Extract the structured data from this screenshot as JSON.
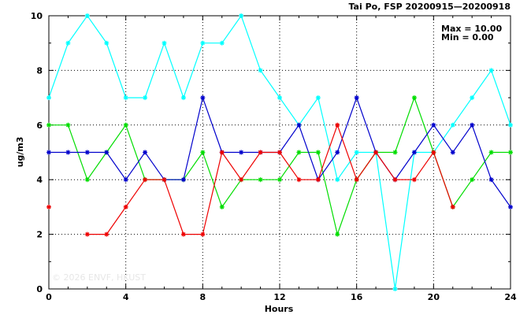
{
  "chart_data": {
    "type": "line",
    "title": "Tai Po, FSP 20200915—20200918",
    "xlabel": "Hours",
    "ylabel": "ug/m3",
    "xlim": [
      0,
      24
    ],
    "ylim": [
      0,
      10
    ],
    "xticks": [
      0,
      4,
      8,
      12,
      16,
      20,
      24
    ],
    "yticks": [
      0,
      2,
      4,
      6,
      8,
      10
    ],
    "grid": true,
    "stats": {
      "max_text": "Max = 10.00",
      "min_text": "Min =  0.00"
    },
    "watermark": "© 2026  ENVF, HKUST",
    "x": [
      0,
      1,
      2,
      3,
      4,
      5,
      6,
      7,
      8,
      9,
      10,
      11,
      12,
      13,
      14,
      15,
      16,
      17,
      18,
      19,
      20,
      21,
      22,
      23,
      24
    ],
    "series": [
      {
        "color": "#00ffff",
        "values": [
          7,
          9,
          10,
          9,
          7,
          7,
          9,
          7,
          9,
          9,
          10,
          8,
          7,
          6,
          7,
          4,
          5,
          5,
          0,
          5,
          5,
          6,
          7,
          8,
          6
        ]
      },
      {
        "color": "#00dd00",
        "values": [
          6,
          6,
          4,
          5,
          6,
          4,
          4,
          4,
          5,
          3,
          4,
          4,
          4,
          5,
          5,
          2,
          4,
          5,
          5,
          7,
          5,
          3,
          4,
          5,
          5
        ]
      },
      {
        "color": "#0000cc",
        "values": [
          5,
          5,
          5,
          5,
          4,
          5,
          4,
          4,
          7,
          5,
          5,
          5,
          5,
          6,
          4,
          5,
          7,
          5,
          4,
          5,
          6,
          5,
          6,
          4,
          3
        ]
      },
      {
        "color": "#ee0000",
        "values": [
          3,
          null,
          2,
          2,
          3,
          4,
          4,
          2,
          2,
          5,
          4,
          5,
          5,
          4,
          4,
          6,
          4,
          5,
          4,
          4,
          5,
          3,
          null,
          null,
          null
        ]
      }
    ]
  }
}
